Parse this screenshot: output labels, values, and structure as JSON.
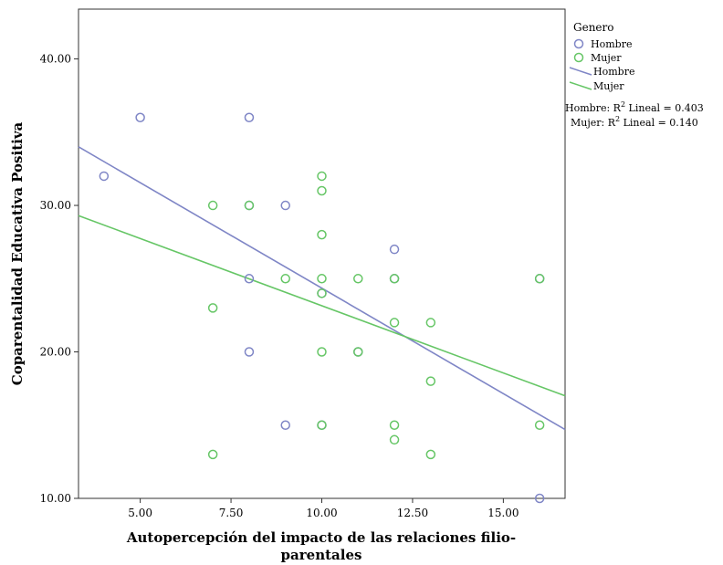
{
  "chart_data": {
    "type": "scatter",
    "title": "",
    "xlabel_lines": [
      "Autopercepción del impacto de las relaciones filio-",
      "parentales"
    ],
    "ylabel": "Coparentalidad Educativa Positiva",
    "xlim": [
      3.3,
      16.7
    ],
    "ylim": [
      10.0,
      43.4
    ],
    "xticks": [
      "5.00",
      "7.50",
      "10.00",
      "12.50",
      "15.00"
    ],
    "xtick_values": [
      5,
      7.5,
      10,
      12.5,
      15
    ],
    "yticks": [
      "10.00",
      "20.00",
      "30.00",
      "40.00"
    ],
    "ytick_values": [
      10,
      20,
      30,
      40
    ],
    "grid": false,
    "legend_position": "right",
    "legend": {
      "title": "Genero",
      "markers": [
        "Hombre",
        "Mujer"
      ],
      "lines": [
        "Hombre",
        "Mujer"
      ],
      "fit_line_1_prefix": "Hombre: R",
      "fit_line_1_suffix": " Lineal = 0.403",
      "fit_line_2_prefix": "Mujer: R",
      "fit_line_2_suffix": " Lineal = 0.140",
      "superscript": "2"
    },
    "series": [
      {
        "name": "Hombre",
        "color": "#7f86c6",
        "points": [
          {
            "x": 4,
            "y": 32
          },
          {
            "x": 5,
            "y": 36
          },
          {
            "x": 8,
            "y": 36
          },
          {
            "x": 8,
            "y": 30
          },
          {
            "x": 9,
            "y": 30
          },
          {
            "x": 8,
            "y": 25
          },
          {
            "x": 10,
            "y": 24
          },
          {
            "x": 8,
            "y": 20
          },
          {
            "x": 11,
            "y": 20
          },
          {
            "x": 9,
            "y": 15
          },
          {
            "x": 10,
            "y": 15
          },
          {
            "x": 12,
            "y": 27
          },
          {
            "x": 12,
            "y": 25
          },
          {
            "x": 16,
            "y": 25
          },
          {
            "x": 16,
            "y": 10
          }
        ],
        "fit": {
          "x": [
            3.3,
            16.7
          ],
          "y": [
            34.0,
            14.7
          ]
        }
      },
      {
        "name": "Mujer",
        "color": "#66c666",
        "points": [
          {
            "x": 7,
            "y": 30
          },
          {
            "x": 8,
            "y": 30
          },
          {
            "x": 10,
            "y": 32
          },
          {
            "x": 10,
            "y": 31
          },
          {
            "x": 10,
            "y": 28
          },
          {
            "x": 7,
            "y": 23
          },
          {
            "x": 9,
            "y": 25
          },
          {
            "x": 10,
            "y": 25
          },
          {
            "x": 11,
            "y": 25
          },
          {
            "x": 12,
            "y": 25
          },
          {
            "x": 10,
            "y": 24
          },
          {
            "x": 12,
            "y": 22
          },
          {
            "x": 13,
            "y": 22
          },
          {
            "x": 10,
            "y": 20
          },
          {
            "x": 11,
            "y": 20
          },
          {
            "x": 13,
            "y": 18
          },
          {
            "x": 10,
            "y": 15
          },
          {
            "x": 12,
            "y": 15
          },
          {
            "x": 12,
            "y": 14
          },
          {
            "x": 7,
            "y": 13
          },
          {
            "x": 13,
            "y": 13
          },
          {
            "x": 16,
            "y": 25
          },
          {
            "x": 16,
            "y": 15
          }
        ],
        "fit": {
          "x": [
            3.3,
            16.7
          ],
          "y": [
            29.3,
            17.0
          ]
        }
      }
    ]
  }
}
